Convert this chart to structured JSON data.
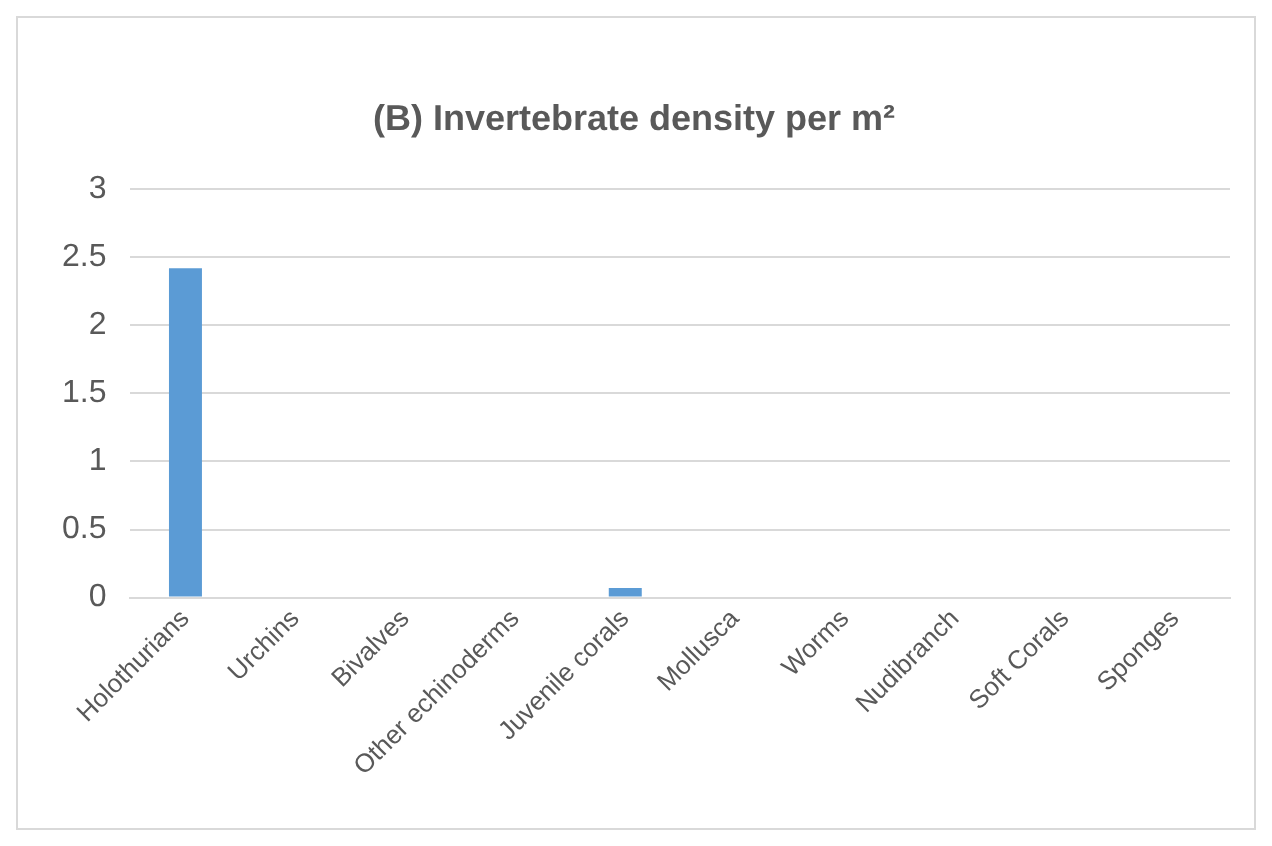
{
  "chart_data": {
    "type": "bar",
    "title": "(B) Invertebrate density per m²",
    "categories": [
      "Holothurians",
      "Urchins",
      "Bivalves",
      "Other echinoderms",
      "Juvenile corals",
      "Mollusca",
      "Worms",
      "Nudibranch",
      "Soft Corals",
      "Sponges"
    ],
    "values": [
      2.42,
      0,
      0,
      0,
      0.07,
      0,
      0,
      0,
      0,
      0
    ],
    "color": "#5b9bd5",
    "ylim": [
      0,
      3
    ],
    "yticks": [
      0,
      0.5,
      1,
      1.5,
      2,
      2.5,
      3
    ],
    "grid": "y",
    "legend": false
  }
}
